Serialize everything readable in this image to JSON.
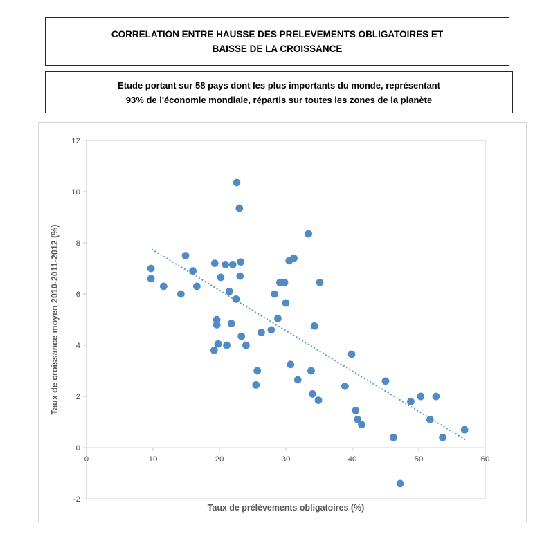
{
  "header": {
    "box1": {
      "line1": "CORRELATION ENTRE HAUSSE DES PRELEVEMENTS OBLIGATOIRES ET",
      "line2": "BAISSE DE LA CROISSANCE"
    },
    "box2": {
      "line1": "Etude  portant sur 58 pays dont les plus importants du monde, représentant",
      "line2": "93% de l'économie mondiale, répartis sur toutes les zones de la planète"
    }
  },
  "chart_data": {
    "type": "scatter",
    "title": "",
    "xlabel": "Taux de prélèvements obligatoires (%)",
    "ylabel": "Taux de croissance moyen 2010-2011-2012 (%)",
    "xlim": [
      0,
      60
    ],
    "ylim": [
      -2,
      12
    ],
    "xticks": [
      0,
      10,
      20,
      30,
      40,
      50,
      60
    ],
    "yticks": [
      12,
      10,
      8,
      6,
      4,
      2,
      0,
      -2
    ],
    "grid": false,
    "legend": "none",
    "point_color": "#4F8BC9",
    "axis_line_color": "#c6c6c6",
    "tick_label_color": "#4d4d4d",
    "axis_title_color": "#595959",
    "points": [
      [
        9.7,
        7.0
      ],
      [
        9.7,
        6.6
      ],
      [
        11.6,
        6.3
      ],
      [
        14.2,
        6.0
      ],
      [
        14.9,
        7.5
      ],
      [
        16.0,
        6.9
      ],
      [
        16.6,
        6.3
      ],
      [
        19.3,
        7.2
      ],
      [
        20.9,
        7.15
      ],
      [
        22.0,
        7.15
      ],
      [
        23.2,
        7.25
      ],
      [
        20.2,
        6.65
      ],
      [
        23.1,
        6.7
      ],
      [
        21.5,
        6.1
      ],
      [
        22.5,
        5.8
      ],
      [
        22.6,
        10.35
      ],
      [
        23.0,
        9.35
      ],
      [
        19.6,
        5.0
      ],
      [
        19.6,
        4.8
      ],
      [
        21.8,
        4.85
      ],
      [
        23.3,
        4.35
      ],
      [
        24.0,
        4.0
      ],
      [
        21.1,
        4.0
      ],
      [
        19.8,
        4.05
      ],
      [
        19.2,
        3.8
      ],
      [
        25.7,
        3.0
      ],
      [
        25.5,
        2.45
      ],
      [
        26.3,
        4.5
      ],
      [
        27.8,
        4.6
      ],
      [
        28.8,
        5.05
      ],
      [
        28.3,
        6.0
      ],
      [
        29.1,
        6.45
      ],
      [
        29.8,
        6.45
      ],
      [
        30.0,
        5.65
      ],
      [
        30.5,
        7.3
      ],
      [
        31.2,
        7.4
      ],
      [
        33.4,
        8.35
      ],
      [
        35.1,
        6.45
      ],
      [
        34.3,
        4.75
      ],
      [
        30.7,
        3.25
      ],
      [
        31.8,
        2.65
      ],
      [
        33.8,
        3.0
      ],
      [
        34.0,
        2.1
      ],
      [
        34.9,
        1.85
      ],
      [
        38.9,
        2.4
      ],
      [
        39.9,
        3.65
      ],
      [
        40.5,
        1.45
      ],
      [
        40.8,
        1.1
      ],
      [
        41.4,
        0.9
      ],
      [
        45.0,
        2.6
      ],
      [
        46.2,
        0.4
      ],
      [
        47.2,
        -1.4
      ],
      [
        48.8,
        1.8
      ],
      [
        50.3,
        2.0
      ],
      [
        52.6,
        2.0
      ],
      [
        51.7,
        1.1
      ],
      [
        53.6,
        0.4
      ],
      [
        56.9,
        0.7
      ]
    ],
    "trendline": {
      "style": "dotted",
      "color": "#5B9BD5",
      "x1": 9.8,
      "y1": 7.75,
      "x2": 57.1,
      "y2": 0.3
    }
  }
}
